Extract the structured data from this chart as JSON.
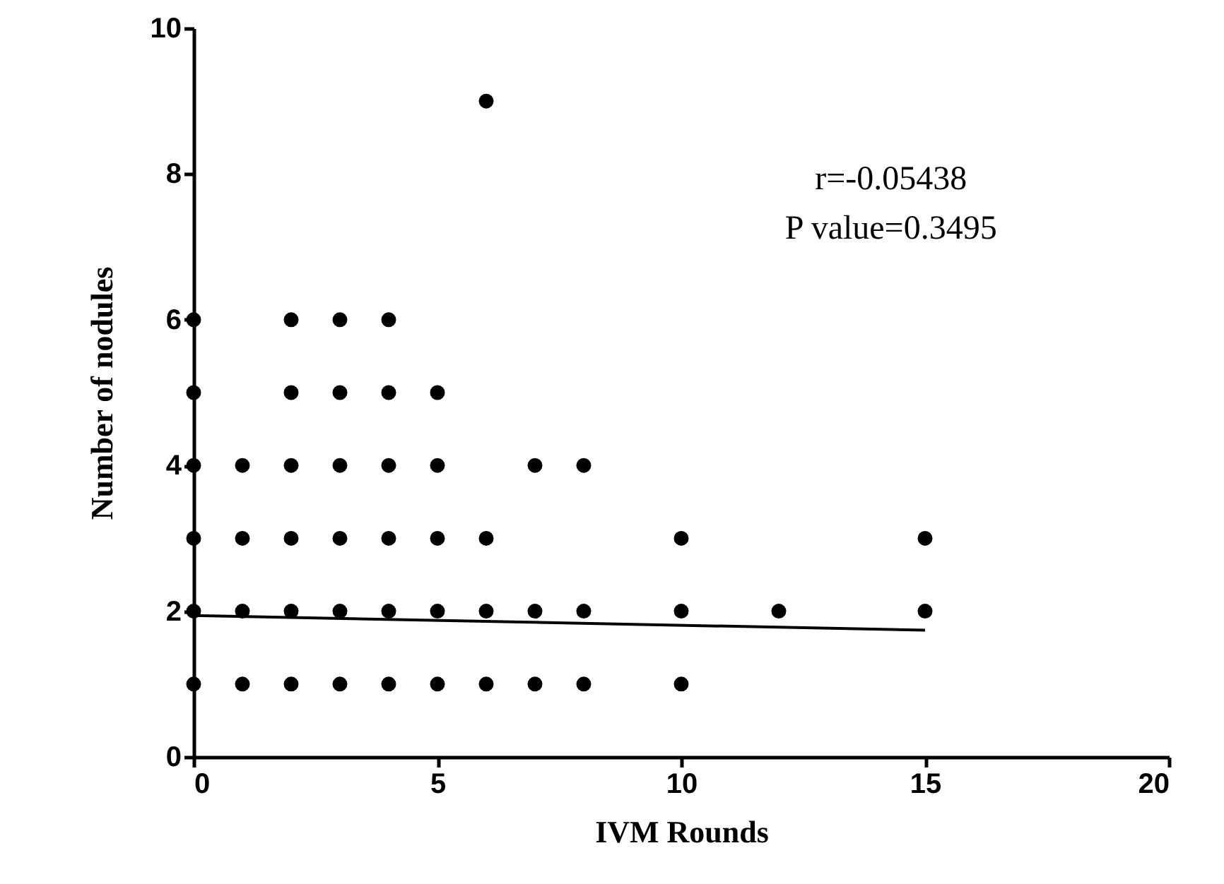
{
  "chart_data": {
    "type": "scatter",
    "xlabel": "IVM Rounds",
    "ylabel": "Number of nodules",
    "xlim": [
      0,
      20
    ],
    "xticks": [
      0,
      5,
      10,
      15,
      20
    ],
    "ylim": [
      0,
      10
    ],
    "yticks": [
      0,
      2,
      4,
      6,
      8,
      10
    ],
    "grid": false,
    "marker": "circle",
    "annotations": [
      "r=-0.05438",
      "P value=0.3495"
    ],
    "series": [
      {
        "color": "#000000",
        "x": [
          0,
          0,
          0,
          0,
          0,
          0,
          1,
          1,
          1,
          1,
          2,
          2,
          2,
          2,
          2,
          2,
          3,
          3,
          3,
          3,
          3,
          3,
          4,
          4,
          4,
          4,
          4,
          4,
          5,
          5,
          5,
          5,
          5,
          6,
          6,
          6,
          6,
          7,
          7,
          7,
          8,
          8,
          8,
          10,
          10,
          10,
          12,
          15,
          15
        ],
        "values": [
          1,
          2,
          3,
          4,
          5,
          6,
          1,
          2,
          3,
          4,
          1,
          2,
          3,
          4,
          5,
          6,
          1,
          2,
          3,
          4,
          5,
          6,
          1,
          2,
          3,
          4,
          5,
          6,
          1,
          2,
          3,
          4,
          5,
          1,
          2,
          3,
          9,
          1,
          2,
          4,
          1,
          2,
          4,
          1,
          2,
          3,
          2,
          2,
          3
        ]
      },
      {
        "type": "line",
        "color": "#000000",
        "line_style": "solid",
        "marker": "none",
        "x": [
          0,
          15
        ],
        "values": [
          1.94,
          1.74
        ]
      }
    ]
  }
}
